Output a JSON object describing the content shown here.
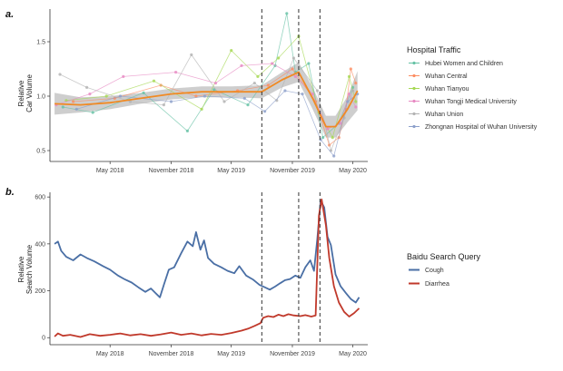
{
  "chart_data": [
    {
      "type": "line",
      "panel_label": "a.",
      "ylabel": [
        "Relative",
        "Car Volume"
      ],
      "yticks": [
        0.5,
        1.0,
        1.5
      ],
      "ytick_labels": [
        "0.5",
        "1.0",
        "1.5"
      ],
      "ylim": [
        0.4,
        1.8
      ],
      "xlim": [
        "2017-11-01",
        "2020-06-15"
      ],
      "xticks": [
        "2018-05-01",
        "2018-11-01",
        "2019-05-01",
        "2019-11-01",
        "2020-05-01"
      ],
      "xtick_labels": [
        "May 2018",
        "November 2018",
        "May 2019",
        "November 2019",
        "May 2020"
      ],
      "vlines": [
        "2019-08-01",
        "2019-11-20",
        "2020-01-23"
      ],
      "legend": {
        "title": "Hospital Traffic",
        "position": "right",
        "items": [
          {
            "name": "Hubei Women and Children",
            "color": "#66c2a5"
          },
          {
            "name": "Wuhan Central",
            "color": "#fc8d62"
          },
          {
            "name": "Wuhan Tianyou",
            "color": "#a6d854"
          },
          {
            "name": "Wuhan Tongji Medical University",
            "color": "#e78ac3"
          },
          {
            "name": "Wuhan Union",
            "color": "#b3b3b3"
          },
          {
            "name": "Zhongnan Hospital of Wuhan University",
            "color": "#8da0cb"
          }
        ]
      },
      "trend": {
        "color": "#f08a24",
        "band_color": "#bdbdbd",
        "points": [
          [
            "2017-11-15",
            0.93
          ],
          [
            "2018-02-01",
            0.92
          ],
          [
            "2018-05-01",
            0.94
          ],
          [
            "2018-08-01",
            0.98
          ],
          [
            "2018-11-01",
            1.02
          ],
          [
            "2019-02-01",
            1.04
          ],
          [
            "2019-05-01",
            1.04
          ],
          [
            "2019-08-01",
            1.04
          ],
          [
            "2019-10-01",
            1.15
          ],
          [
            "2019-11-20",
            1.22
          ],
          [
            "2020-01-01",
            0.98
          ],
          [
            "2020-02-10",
            0.72
          ],
          [
            "2020-03-10",
            0.72
          ],
          [
            "2020-04-15",
            0.88
          ],
          [
            "2020-05-15",
            1.05
          ]
        ],
        "band": [
          0.1,
          0.07,
          0.06,
          0.05,
          0.05,
          0.05,
          0.05,
          0.06,
          0.07,
          0.09,
          0.1,
          0.1,
          0.1,
          0.12,
          0.18
        ]
      },
      "series": [
        {
          "name": "Hubei Women and Children",
          "color": "#66c2a5",
          "points": [
            [
              "2017-12-10",
              0.9
            ],
            [
              "2018-03-10",
              0.85
            ],
            [
              "2018-08-10",
              1.03
            ],
            [
              "2018-12-20",
              0.68
            ],
            [
              "2019-03-10",
              1.06
            ],
            [
              "2019-06-20",
              0.92
            ],
            [
              "2019-09-10",
              1.28
            ],
            [
              "2019-10-15",
              1.76
            ],
            [
              "2019-11-10",
              1.22
            ],
            [
              "2019-12-20",
              1.3
            ],
            [
              "2020-02-01",
              0.62
            ],
            [
              "2020-03-20",
              0.75
            ],
            [
              "2020-05-01",
              1.08
            ]
          ]
        },
        {
          "name": "Wuhan Central",
          "color": "#fc8d62",
          "points": [
            [
              "2018-01-10",
              0.95
            ],
            [
              "2018-05-15",
              0.98
            ],
            [
              "2018-10-01",
              1.1
            ],
            [
              "2019-01-15",
              1.0
            ],
            [
              "2019-05-20",
              1.05
            ],
            [
              "2019-08-20",
              1.1
            ],
            [
              "2019-11-01",
              1.25
            ],
            [
              "2020-01-10",
              0.95
            ],
            [
              "2020-02-20",
              0.55
            ],
            [
              "2020-03-20",
              0.62
            ],
            [
              "2020-04-10",
              0.88
            ],
            [
              "2020-04-25",
              1.25
            ],
            [
              "2020-05-10",
              1.12
            ]
          ]
        },
        {
          "name": "Wuhan Tianyou",
          "color": "#a6d854",
          "points": [
            [
              "2017-12-20",
              0.96
            ],
            [
              "2018-04-20",
              1.0
            ],
            [
              "2018-09-10",
              1.14
            ],
            [
              "2019-02-01",
              0.88
            ],
            [
              "2019-05-01",
              1.42
            ],
            [
              "2019-07-20",
              1.18
            ],
            [
              "2019-09-20",
              1.35
            ],
            [
              "2019-11-20",
              1.55
            ],
            [
              "2020-01-20",
              0.85
            ],
            [
              "2020-03-01",
              0.62
            ],
            [
              "2020-04-20",
              1.18
            ],
            [
              "2020-05-10",
              0.95
            ]
          ]
        },
        {
          "name": "Wuhan Tongji Medical University",
          "color": "#e78ac3",
          "points": [
            [
              "2017-11-20",
              0.92
            ],
            [
              "2018-03-01",
              1.02
            ],
            [
              "2018-06-10",
              1.18
            ],
            [
              "2018-11-15",
              1.22
            ],
            [
              "2019-03-15",
              1.12
            ],
            [
              "2019-06-01",
              1.28
            ],
            [
              "2019-09-01",
              1.3
            ],
            [
              "2019-11-10",
              1.18
            ],
            [
              "2020-01-01",
              1.02
            ],
            [
              "2020-02-15",
              0.7
            ],
            [
              "2020-03-25",
              0.75
            ],
            [
              "2020-04-20",
              1.02
            ],
            [
              "2020-05-10",
              0.9
            ]
          ]
        },
        {
          "name": "Wuhan Union",
          "color": "#b3b3b3",
          "points": [
            [
              "2017-12-01",
              1.2
            ],
            [
              "2018-02-20",
              1.08
            ],
            [
              "2018-07-01",
              0.95
            ],
            [
              "2018-10-10",
              0.92
            ],
            [
              "2019-01-01",
              1.38
            ],
            [
              "2019-04-10",
              0.95
            ],
            [
              "2019-07-10",
              1.12
            ],
            [
              "2019-09-15",
              0.96
            ],
            [
              "2019-11-05",
              1.35
            ],
            [
              "2020-01-15",
              1.05
            ],
            [
              "2020-02-25",
              0.5
            ],
            [
              "2020-04-05",
              0.8
            ],
            [
              "2020-05-01",
              1.05
            ]
          ]
        },
        {
          "name": "Zhongnan Hospital of Wuhan University",
          "color": "#8da0cb",
          "points": [
            [
              "2018-01-20",
              0.88
            ],
            [
              "2018-06-01",
              1.0
            ],
            [
              "2018-11-01",
              0.95
            ],
            [
              "2019-02-10",
              1.0
            ],
            [
              "2019-06-10",
              0.98
            ],
            [
              "2019-08-10",
              0.86
            ],
            [
              "2019-10-10",
              1.05
            ],
            [
              "2019-12-01",
              1.02
            ],
            [
              "2020-01-25",
              0.6
            ],
            [
              "2020-03-05",
              0.45
            ],
            [
              "2020-04-15",
              0.95
            ],
            [
              "2020-05-15",
              1.02
            ]
          ]
        }
      ]
    },
    {
      "type": "line",
      "panel_label": "b.",
      "ylabel": [
        "Relative",
        "Search Volume"
      ],
      "yticks": [
        0,
        200,
        400,
        600
      ],
      "ytick_labels": [
        "0",
        "200",
        "400",
        "600"
      ],
      "ylim": [
        -30,
        620
      ],
      "xlim": [
        "2017-11-01",
        "2020-06-15"
      ],
      "xticks": [
        "2018-05-01",
        "2018-11-01",
        "2019-05-01",
        "2019-11-01",
        "2020-05-01"
      ],
      "xtick_labels": [
        "May 2018",
        "November 2018",
        "May 2019",
        "November 2019",
        "May 2020"
      ],
      "vlines": [
        "2019-08-01",
        "2019-11-20",
        "2020-01-23"
      ],
      "legend": {
        "title": "Baidu Search Query",
        "position": "right",
        "items": [
          {
            "name": "Cough",
            "color": "#4a6fa5"
          },
          {
            "name": "Diarrhea",
            "color": "#c0392b"
          }
        ]
      },
      "series": [
        {
          "name": "Cough",
          "color": "#4a6fa5",
          "points": [
            [
              "2017-11-15",
              400
            ],
            [
              "2017-11-25",
              410
            ],
            [
              "2017-12-05",
              370
            ],
            [
              "2017-12-20",
              345
            ],
            [
              "2018-01-10",
              330
            ],
            [
              "2018-02-01",
              355
            ],
            [
              "2018-02-20",
              340
            ],
            [
              "2018-03-15",
              325
            ],
            [
              "2018-04-10",
              305
            ],
            [
              "2018-05-01",
              290
            ],
            [
              "2018-05-25",
              265
            ],
            [
              "2018-06-15",
              248
            ],
            [
              "2018-07-05",
              235
            ],
            [
              "2018-07-25",
              215
            ],
            [
              "2018-08-15",
              195
            ],
            [
              "2018-09-01",
              210
            ],
            [
              "2018-09-15",
              190
            ],
            [
              "2018-09-28",
              172
            ],
            [
              "2018-10-10",
              225
            ],
            [
              "2018-10-25",
              290
            ],
            [
              "2018-11-10",
              300
            ],
            [
              "2018-12-01",
              360
            ],
            [
              "2018-12-20",
              410
            ],
            [
              "2019-01-05",
              390
            ],
            [
              "2019-01-15",
              450
            ],
            [
              "2019-01-28",
              375
            ],
            [
              "2019-02-08",
              415
            ],
            [
              "2019-02-20",
              340
            ],
            [
              "2019-03-10",
              315
            ],
            [
              "2019-04-01",
              300
            ],
            [
              "2019-04-20",
              285
            ],
            [
              "2019-05-10",
              275
            ],
            [
              "2019-05-25",
              305
            ],
            [
              "2019-06-15",
              265
            ],
            [
              "2019-07-05",
              248
            ],
            [
              "2019-07-25",
              225
            ],
            [
              "2019-08-10",
              215
            ],
            [
              "2019-08-25",
              205
            ],
            [
              "2019-09-10",
              218
            ],
            [
              "2019-09-25",
              232
            ],
            [
              "2019-10-10",
              245
            ],
            [
              "2019-10-25",
              250
            ],
            [
              "2019-11-10",
              265
            ],
            [
              "2019-11-25",
              255
            ],
            [
              "2019-12-10",
              300
            ],
            [
              "2019-12-25",
              330
            ],
            [
              "2020-01-05",
              285
            ],
            [
              "2020-01-15",
              420
            ],
            [
              "2020-01-25",
              585
            ],
            [
              "2020-02-05",
              555
            ],
            [
              "2020-02-15",
              430
            ],
            [
              "2020-02-25",
              395
            ],
            [
              "2020-03-10",
              270
            ],
            [
              "2020-03-25",
              220
            ],
            [
              "2020-04-10",
              190
            ],
            [
              "2020-04-25",
              165
            ],
            [
              "2020-05-10",
              150
            ],
            [
              "2020-05-20",
              172
            ]
          ]
        },
        {
          "name": "Diarrhea",
          "color": "#c0392b",
          "points": [
            [
              "2017-11-15",
              5
            ],
            [
              "2017-11-25",
              18
            ],
            [
              "2017-12-10",
              8
            ],
            [
              "2018-01-01",
              12
            ],
            [
              "2018-02-01",
              3
            ],
            [
              "2018-03-01",
              15
            ],
            [
              "2018-04-01",
              8
            ],
            [
              "2018-05-01",
              12
            ],
            [
              "2018-06-01",
              18
            ],
            [
              "2018-07-01",
              10
            ],
            [
              "2018-08-01",
              15
            ],
            [
              "2018-09-01",
              8
            ],
            [
              "2018-10-01",
              14
            ],
            [
              "2018-11-01",
              22
            ],
            [
              "2018-12-01",
              12
            ],
            [
              "2019-01-01",
              18
            ],
            [
              "2019-02-01",
              10
            ],
            [
              "2019-03-01",
              16
            ],
            [
              "2019-04-01",
              12
            ],
            [
              "2019-05-01",
              20
            ],
            [
              "2019-06-01",
              30
            ],
            [
              "2019-06-20",
              38
            ],
            [
              "2019-07-10",
              50
            ],
            [
              "2019-07-28",
              62
            ],
            [
              "2019-08-05",
              85
            ],
            [
              "2019-08-20",
              92
            ],
            [
              "2019-09-05",
              88
            ],
            [
              "2019-09-20",
              98
            ],
            [
              "2019-10-05",
              92
            ],
            [
              "2019-10-20",
              100
            ],
            [
              "2019-11-05",
              95
            ],
            [
              "2019-11-25",
              92
            ],
            [
              "2019-12-10",
              96
            ],
            [
              "2019-12-28",
              90
            ],
            [
              "2020-01-10",
              95
            ],
            [
              "2020-01-20",
              520
            ],
            [
              "2020-01-28",
              590
            ],
            [
              "2020-02-10",
              480
            ],
            [
              "2020-02-20",
              340
            ],
            [
              "2020-03-05",
              220
            ],
            [
              "2020-03-20",
              150
            ],
            [
              "2020-04-05",
              110
            ],
            [
              "2020-04-20",
              90
            ],
            [
              "2020-05-05",
              105
            ],
            [
              "2020-05-20",
              125
            ]
          ]
        }
      ]
    }
  ]
}
